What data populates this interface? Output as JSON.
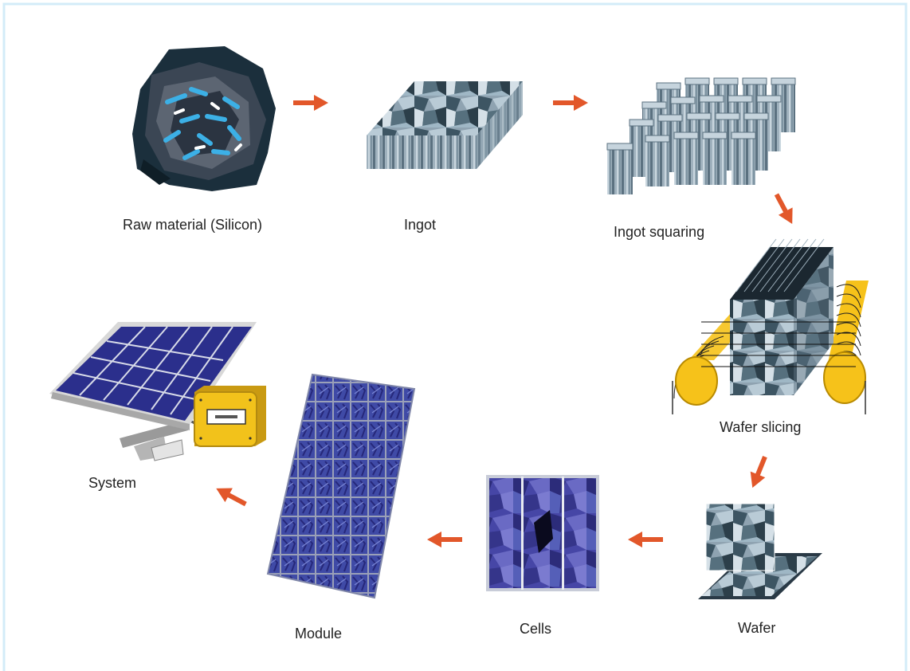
{
  "diagram": {
    "colors": {
      "frame": "#d3ecf8",
      "arrow": "#e2572a",
      "silicon_dark": "#1b2f3c",
      "silicon_accent": "#3cb0e6",
      "ingot_gray": "#7f95a3",
      "roller_yellow": "#f6c21a",
      "cell_blue": "#3f3f9a",
      "panel_blue": "#2b2f8c",
      "inverter_yellow": "#f2c21b"
    },
    "stages": [
      {
        "id": "raw",
        "label": "Raw material (Silicon)",
        "icon": "silicon-chunk-icon"
      },
      {
        "id": "ingot",
        "label": "Ingot",
        "icon": "ingot-block-icon"
      },
      {
        "id": "squaring",
        "label": "Ingot squaring",
        "icon": "ingot-squared-columns-icon"
      },
      {
        "id": "slicing",
        "label": "Wafer slicing",
        "icon": "wire-saw-icon"
      },
      {
        "id": "wafer",
        "label": "Wafer",
        "icon": "wafer-icon"
      },
      {
        "id": "cells",
        "label": "Cells",
        "icon": "solar-cell-icon"
      },
      {
        "id": "module",
        "label": "Module",
        "icon": "solar-module-icon"
      },
      {
        "id": "system",
        "label": "System",
        "icon": "pv-system-icon"
      }
    ]
  }
}
